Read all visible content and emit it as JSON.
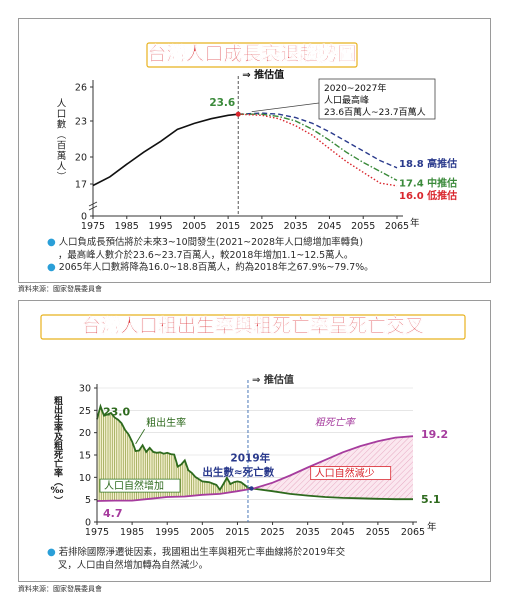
{
  "colors": {
    "title_red": "#d9262d",
    "bullet_blue": "#2a9fd8",
    "gold": "#e8b21e"
  },
  "source_label": "資料來源：國家發展委員會",
  "chart_data": [
    {
      "type": "line",
      "title": "台灣人口成長衰退趨勢圖",
      "ylabel": "人口數（百萬人）",
      "x_unit": "年",
      "x_ticks": [
        1975,
        1985,
        1995,
        2005,
        2015,
        2025,
        2035,
        2045,
        2055,
        2065
      ],
      "y_ticks": [
        0,
        17,
        20,
        23,
        26
      ],
      "ylim": [
        0,
        26.5
      ],
      "xlim": [
        1975,
        2065
      ],
      "forecast_label": "⇒ 推估值",
      "peak_label": "23.6",
      "callout": [
        "2020~2027年",
        "人口最高峰",
        "23.6百萬人~23.7百萬人"
      ],
      "series": [
        {
          "key": "actual",
          "color": "#111111",
          "style": "solid",
          "x": [
            1975,
            1980,
            1985,
            1990,
            1995,
            2000,
            2005,
            2010,
            2015,
            2018
          ],
          "y": [
            16.2,
            17.8,
            19.2,
            20.4,
            21.3,
            22.3,
            22.8,
            23.2,
            23.5,
            23.6
          ]
        },
        {
          "key": "high",
          "name": "18.8 高推估",
          "end_value": 18.8,
          "color": "#2a3a8c",
          "style": "dashed",
          "x": [
            2018,
            2025,
            2030,
            2035,
            2040,
            2045,
            2050,
            2055,
            2060,
            2065
          ],
          "y": [
            23.6,
            23.7,
            23.6,
            23.3,
            22.8,
            22.1,
            21.3,
            20.5,
            19.6,
            18.8
          ]
        },
        {
          "key": "mid",
          "name": "17.4 中推估",
          "end_value": 17.4,
          "color": "#3a8a3a",
          "style": "dashdot",
          "x": [
            2018,
            2025,
            2030,
            2035,
            2040,
            2045,
            2050,
            2055,
            2060,
            2065
          ],
          "y": [
            23.6,
            23.6,
            23.4,
            23.0,
            22.3,
            21.4,
            20.4,
            19.4,
            18.4,
            17.4
          ]
        },
        {
          "key": "low",
          "name": "16.0 低推估",
          "end_value": 16.0,
          "color": "#d9262d",
          "style": "dotted",
          "x": [
            2018,
            2025,
            2030,
            2035,
            2040,
            2045,
            2050,
            2055,
            2060,
            2065
          ],
          "y": [
            23.6,
            23.5,
            23.2,
            22.6,
            21.8,
            20.7,
            19.5,
            18.3,
            17.1,
            16.0
          ]
        }
      ],
      "notes": [
        [
          "人口負成長預估將於未來3~10間發生(2021~2028年人口總增加率轉負)",
          "，最高峰人數介於23.6~23.7百萬人，較2018年增加1.1~12.5萬人。"
        ],
        [
          "2065年人口數將降為16.0~18.8百萬人，約為2018年之67.9%~79.7%。"
        ]
      ]
    },
    {
      "type": "line",
      "title": "台灣人口粗出生率與粗死亡率呈死亡交叉",
      "ylabel": "粗出生率及粗死亡率（‰）",
      "x_unit": "年",
      "x_ticks": [
        1975,
        1985,
        1995,
        2005,
        2015,
        2025,
        2035,
        2045,
        2055,
        2065
      ],
      "y_ticks": [
        0,
        5,
        10,
        15,
        20,
        25,
        30
      ],
      "ylim": [
        0,
        30
      ],
      "xlim": [
        1975,
        2065
      ],
      "forecast_label": "⇒ 推估值",
      "cross_label": [
        "2019年",
        "出生數≈死亡數"
      ],
      "increase_label": "人口自然增加",
      "decrease_label": "人口自然減少",
      "series": [
        {
          "key": "birth",
          "name": "粗出生率",
          "color": "#2e6a1e",
          "start_value": 23.0,
          "end_value": 5.1,
          "x": [
            1975,
            1976,
            1977,
            1978,
            1979,
            1980,
            1981,
            1982,
            1983,
            1984,
            1985,
            1986,
            1987,
            1988,
            1989,
            1990,
            1991,
            1992,
            1993,
            1994,
            1995,
            1996,
            1997,
            1998,
            1999,
            2000,
            2001,
            2002,
            2003,
            2004,
            2005,
            2006,
            2007,
            2008,
            2009,
            2010,
            2011,
            2012,
            2013,
            2014,
            2015,
            2016,
            2017,
            2018,
            2020,
            2025,
            2030,
            2035,
            2040,
            2045,
            2050,
            2055,
            2060,
            2065
          ],
          "y": [
            23.0,
            25.9,
            23.8,
            24.1,
            24.4,
            23.4,
            22.9,
            22.1,
            20.6,
            19.6,
            18.0,
            15.9,
            16.0,
            17.2,
            15.7,
            16.6,
            15.7,
            15.5,
            15.6,
            15.3,
            15.5,
            15.2,
            15.1,
            12.4,
            12.9,
            13.8,
            11.6,
            11.0,
            10.1,
            9.6,
            9.1,
            9.0,
            8.9,
            8.6,
            8.3,
            7.2,
            8.5,
            9.9,
            8.5,
            8.9,
            9.1,
            8.9,
            8.3,
            7.7,
            7.4,
            6.9,
            6.3,
            5.9,
            5.6,
            5.4,
            5.3,
            5.2,
            5.1,
            5.1
          ]
        },
        {
          "key": "death",
          "name": "粗死亡率",
          "color": "#a63c9e",
          "start_value": 4.7,
          "end_value": 19.2,
          "x": [
            1975,
            1980,
            1985,
            1990,
            1995,
            2000,
            2005,
            2010,
            2015,
            2018,
            2020,
            2025,
            2030,
            2035,
            2040,
            2045,
            2050,
            2055,
            2060,
            2065
          ],
          "y": [
            4.7,
            4.8,
            4.8,
            5.2,
            5.6,
            5.7,
            6.1,
            6.3,
            6.9,
            7.3,
            7.6,
            8.8,
            10.4,
            12.2,
            13.9,
            15.6,
            17.0,
            18.1,
            18.9,
            19.2
          ]
        }
      ],
      "notes": [
        [
          "若排除國際淨遷徙因素，我國粗出生率與粗死亡率曲線將於2019年交",
          "叉，人口由自然增加轉為自然減少。"
        ]
      ]
    }
  ]
}
